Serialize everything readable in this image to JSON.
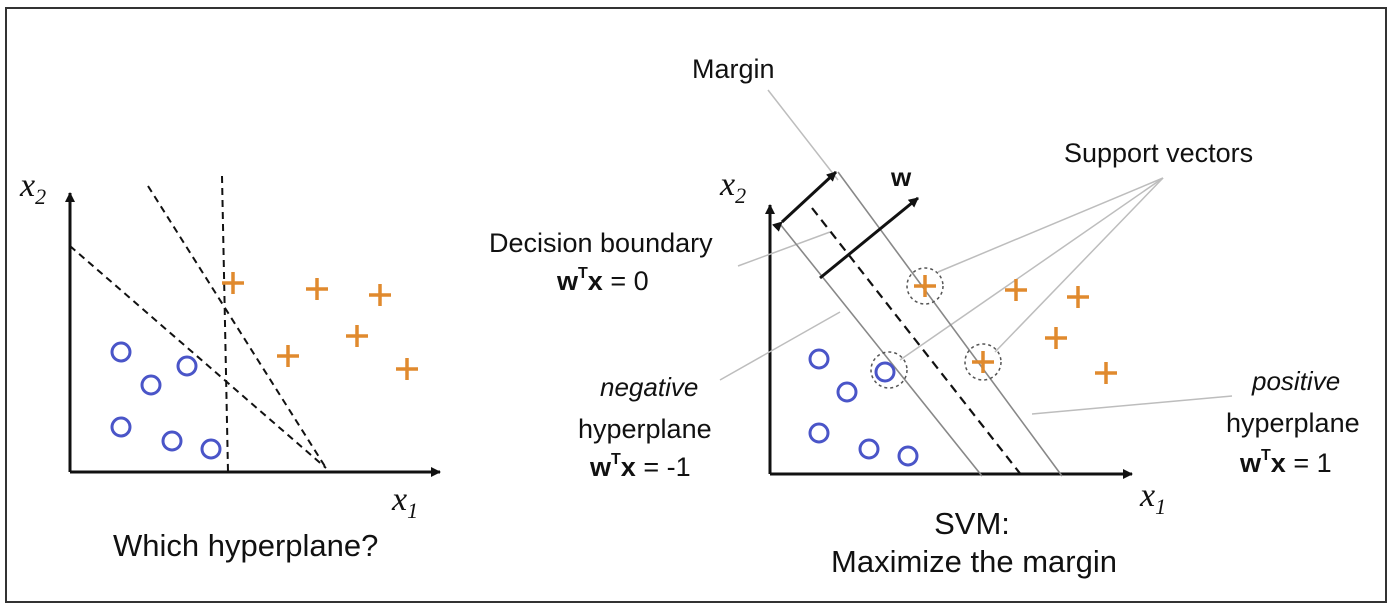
{
  "left_panel": {
    "axis_x_main": "x",
    "axis_x_sub": "1",
    "axis_y_main": "x",
    "axis_y_sub": "2",
    "caption": "Which hyperplane?"
  },
  "right_panel": {
    "axis_x_main": "x",
    "axis_x_sub": "1",
    "axis_y_main": "x",
    "axis_y_sub": "2",
    "margin_label": "Margin",
    "w_label": "w",
    "support_vectors_label": "Support vectors",
    "decision_boundary": {
      "title": "Decision boundary",
      "eq_w": "w",
      "eq_sup": "T",
      "eq_x": "x",
      "eq_rest": " = 0"
    },
    "negative_hyperplane": {
      "qualifier": "negative",
      "title": "hyperplane",
      "eq_w": "w",
      "eq_sup": "T",
      "eq_x": "x",
      "eq_rest": " = -1"
    },
    "positive_hyperplane": {
      "qualifier": "positive",
      "title": "hyperplane",
      "eq_w": "w",
      "eq_sup": "T",
      "eq_x": "x",
      "eq_rest": " = 1"
    },
    "caption_line1": "SVM:",
    "caption_line2": "Maximize the margin"
  },
  "colors": {
    "circle_class": "#4a55c8",
    "plus_class": "#e08a2e",
    "ink": "#111111",
    "pointer": "#bdbdbd",
    "frame": "#333333"
  }
}
